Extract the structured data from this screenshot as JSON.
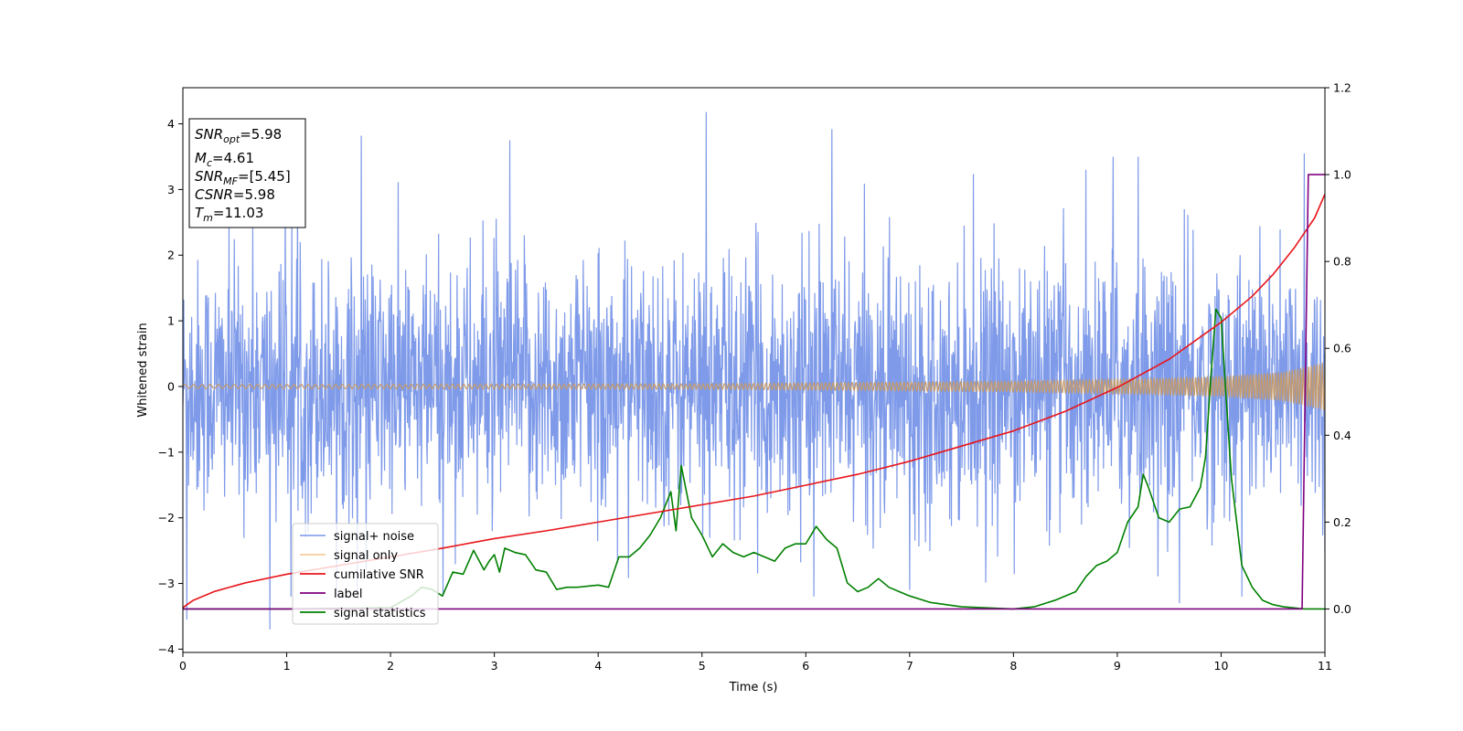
{
  "chart_data": {
    "type": "line",
    "xlabel": "Time (s)",
    "ylabel": "Whitened strain",
    "xlim": [
      0,
      11
    ],
    "ylim": [
      -4.05,
      4.55
    ],
    "y2lim": [
      -0.1,
      1.2
    ],
    "x_ticks": [
      0,
      1,
      2,
      3,
      4,
      5,
      6,
      7,
      8,
      9,
      10,
      11
    ],
    "y_ticks": [
      -4,
      -3,
      -2,
      -1,
      0,
      1,
      2,
      3,
      4
    ],
    "y2_ticks": [
      0.0,
      0.2,
      0.4,
      0.6,
      0.8,
      1.0,
      1.2
    ],
    "x_tick_labels": [
      "0",
      "1",
      "2",
      "3",
      "4",
      "5",
      "6",
      "7",
      "8",
      "9",
      "10",
      "11"
    ],
    "y_tick_labels": [
      "−4",
      "−3",
      "−2",
      "−1",
      "0",
      "1",
      "2",
      "3",
      "4"
    ],
    "y2_tick_labels": [
      "0.0",
      "0.2",
      "0.4",
      "0.6",
      "0.8",
      "1.0",
      "1.2"
    ],
    "grid": false,
    "legend_position": "lower-left",
    "stats_box": {
      "snr_opt": {
        "main": "SNR",
        "sub": "opt",
        "rest": "=5.98"
      },
      "mc": {
        "main": "M",
        "sub": "c",
        "rest": "=4.61"
      },
      "snr_mf": {
        "main": "SNR",
        "sub": "MF",
        "rest": "=[5.45]"
      },
      "csnr": {
        "main": "CSNR",
        "sub": "",
        "rest": "=5.98"
      },
      "tm": {
        "main": "T",
        "sub": "m",
        "rest": "=11.03"
      }
    },
    "series": [
      {
        "name": "signal+ noise",
        "axis": "left",
        "color": "#7795e8",
        "style": "noise",
        "note": "dense whitened noise, roughly ±2.3 with spikes up to ~4.2 and down to ~-3.7",
        "spikes": [
          [
            0.04,
            -3.55
          ],
          [
            0.84,
            -3.7
          ],
          [
            1.72,
            3.82
          ],
          [
            3.15,
            3.75
          ],
          [
            5.04,
            4.18
          ],
          [
            6.25,
            3.92
          ],
          [
            9.6,
            -3.3
          ],
          [
            9.2,
            3.5
          ],
          [
            8.96,
            3.5
          ],
          [
            7.0,
            -3.1
          ],
          [
            10.2,
            -3.2
          ],
          [
            10.8,
            3.55
          ]
        ]
      },
      {
        "name": "signal only",
        "axis": "left",
        "color": "#c49a6c",
        "style": "chirp",
        "amplitude": [
          [
            0,
            0.03
          ],
          [
            5,
            0.04
          ],
          [
            8,
            0.08
          ],
          [
            9,
            0.11
          ],
          [
            10,
            0.15
          ],
          [
            10.6,
            0.22
          ],
          [
            11,
            0.37
          ]
        ]
      },
      {
        "name": "cumilative SNR",
        "axis": "right",
        "color": "#e8151b",
        "x": [
          0,
          0.1,
          0.3,
          0.6,
          1.0,
          1.5,
          2.0,
          2.5,
          3.0,
          3.5,
          4.0,
          4.5,
          5.0,
          5.5,
          6.0,
          6.5,
          7.0,
          7.5,
          8.0,
          8.5,
          9.0,
          9.5,
          10.0,
          10.3,
          10.5,
          10.7,
          10.9,
          11.0
        ],
        "y": [
          0.003,
          0.02,
          0.04,
          0.06,
          0.08,
          0.1,
          0.12,
          0.14,
          0.162,
          0.18,
          0.2,
          0.22,
          0.24,
          0.26,
          0.285,
          0.31,
          0.34,
          0.375,
          0.41,
          0.455,
          0.51,
          0.575,
          0.66,
          0.72,
          0.77,
          0.83,
          0.9,
          0.955
        ]
      },
      {
        "name": "label",
        "axis": "right",
        "color": "#800080",
        "x": [
          0,
          10.78,
          10.84,
          10.99,
          11.0
        ],
        "y": [
          0,
          0,
          1.0,
          1.0,
          1.0
        ]
      },
      {
        "name": "signal statistics",
        "axis": "right",
        "color": "#008000",
        "x": [
          0,
          1.0,
          2.0,
          2.2,
          2.3,
          2.4,
          2.5,
          2.6,
          2.7,
          2.8,
          2.9,
          2.95,
          3.0,
          3.05,
          3.1,
          3.2,
          3.3,
          3.4,
          3.5,
          3.6,
          3.7,
          3.8,
          4.0,
          4.1,
          4.2,
          4.3,
          4.4,
          4.5,
          4.6,
          4.7,
          4.75,
          4.8,
          4.9,
          5.0,
          5.1,
          5.2,
          5.3,
          5.4,
          5.5,
          5.6,
          5.7,
          5.8,
          5.9,
          6.0,
          6.1,
          6.2,
          6.3,
          6.4,
          6.5,
          6.6,
          6.7,
          6.8,
          6.9,
          7.0,
          7.2,
          7.5,
          8.0,
          8.2,
          8.4,
          8.6,
          8.7,
          8.8,
          8.9,
          9.0,
          9.1,
          9.2,
          9.25,
          9.3,
          9.4,
          9.5,
          9.6,
          9.7,
          9.8,
          9.85,
          9.9,
          9.95,
          10.0,
          10.05,
          10.1,
          10.2,
          10.3,
          10.4,
          10.5,
          10.6,
          10.8,
          11.0
        ],
        "y": [
          0.0,
          0.0,
          0.003,
          0.03,
          0.05,
          0.045,
          0.03,
          0.085,
          0.08,
          0.135,
          0.09,
          0.11,
          0.125,
          0.085,
          0.14,
          0.13,
          0.125,
          0.09,
          0.085,
          0.045,
          0.05,
          0.05,
          0.055,
          0.05,
          0.12,
          0.12,
          0.14,
          0.17,
          0.21,
          0.27,
          0.18,
          0.33,
          0.21,
          0.17,
          0.12,
          0.15,
          0.13,
          0.12,
          0.13,
          0.12,
          0.11,
          0.14,
          0.15,
          0.15,
          0.19,
          0.16,
          0.14,
          0.06,
          0.04,
          0.05,
          0.07,
          0.05,
          0.04,
          0.03,
          0.015,
          0.005,
          0.0,
          0.005,
          0.02,
          0.04,
          0.075,
          0.1,
          0.11,
          0.13,
          0.2,
          0.235,
          0.31,
          0.28,
          0.21,
          0.2,
          0.23,
          0.235,
          0.28,
          0.35,
          0.53,
          0.69,
          0.67,
          0.48,
          0.3,
          0.1,
          0.05,
          0.02,
          0.01,
          0.005,
          0.0,
          0.0
        ]
      }
    ]
  }
}
